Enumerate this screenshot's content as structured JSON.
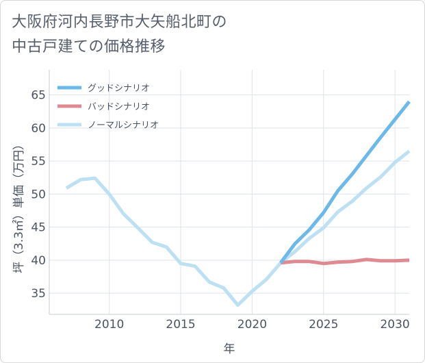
{
  "title_lines": [
    "大阪府河内長野市大矢船北町の",
    "中古戸建ての価格推移"
  ],
  "chart_data": {
    "type": "line",
    "title": "大阪府河内長野市大矢船北町の中古戸建ての価格推移",
    "xlabel": "年",
    "ylabel": "坪（3.3㎡）単価（万円）",
    "xlim": [
      2005.8,
      2031.0
    ],
    "ylim": [
      31.8,
      68.8
    ],
    "xticks": [
      2010,
      2015,
      2020,
      2025,
      2030
    ],
    "yticks": [
      35,
      40,
      45,
      50,
      55,
      60,
      65
    ],
    "grid": true,
    "legend_position": "top-left",
    "series": [
      {
        "name": "グッドシナリオ",
        "color": "#6cb8e8",
        "x": [
          2022,
          2023,
          2024,
          2025,
          2026,
          2027,
          2028,
          2029,
          2030,
          2031
        ],
        "values": [
          39.6,
          42.5,
          44.6,
          47.2,
          50.5,
          53.0,
          55.8,
          58.6,
          61.3,
          64.0
        ]
      },
      {
        "name": "バッドシナリオ",
        "color": "#de8a92",
        "x": [
          2022,
          2023,
          2024,
          2025,
          2026,
          2027,
          2028,
          2029,
          2030,
          2031
        ],
        "values": [
          39.6,
          39.8,
          39.8,
          39.5,
          39.7,
          39.8,
          40.1,
          39.9,
          39.9,
          40.0
        ]
      },
      {
        "name": "ノーマルシナリオ",
        "color": "#bde0f2",
        "x": [
          2007,
          2008,
          2009,
          2010,
          2011,
          2012,
          2013,
          2014,
          2015,
          2016,
          2017,
          2018,
          2019,
          2020,
          2021,
          2022,
          2023,
          2024,
          2025,
          2026,
          2027,
          2028,
          2029,
          2030,
          2031
        ],
        "values": [
          50.9,
          52.2,
          52.4,
          50.0,
          47.0,
          44.9,
          42.7,
          42.0,
          39.5,
          39.1,
          36.7,
          35.8,
          33.2,
          35.3,
          37.1,
          39.6,
          41.3,
          43.3,
          44.9,
          47.3,
          48.9,
          50.9,
          52.6,
          54.8,
          56.5
        ]
      }
    ]
  }
}
